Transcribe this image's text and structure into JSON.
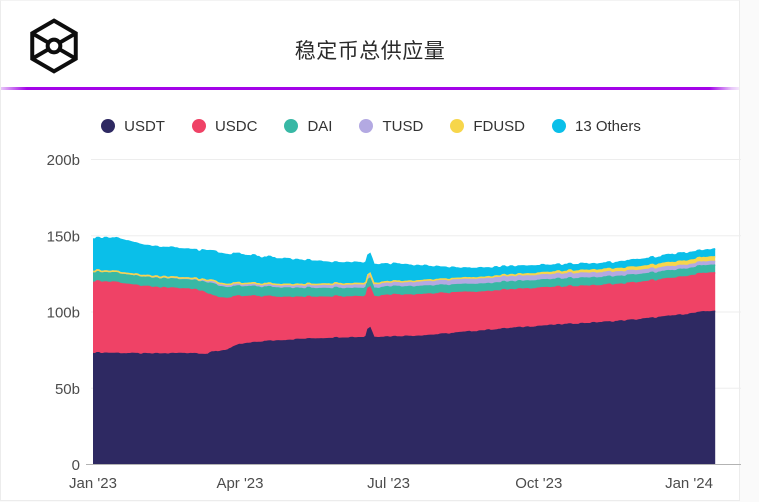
{
  "header": {
    "title": "稳定币总供应量"
  },
  "accent_color": "#a303e8",
  "chart_data": {
    "type": "area",
    "stacked": true,
    "title": "稳定币总供应量",
    "legend_position": "top",
    "grid": true,
    "ylim": [
      0,
      200
    ],
    "y_ticks": [
      {
        "value": 0,
        "label": "0"
      },
      {
        "value": 50,
        "label": "50b"
      },
      {
        "value": 100,
        "label": "100b"
      },
      {
        "value": 150,
        "label": "150b"
      },
      {
        "value": 200,
        "label": "200b"
      }
    ],
    "x_ticks": [
      {
        "day": 0,
        "label": "Jan '23"
      },
      {
        "day": 90,
        "label": "Apr '23"
      },
      {
        "day": 181,
        "label": "Jul '23"
      },
      {
        "day": 273,
        "label": "Oct '23"
      },
      {
        "day": 365,
        "label": "Jan '24"
      }
    ],
    "days": [
      0,
      14,
      31,
      45,
      59,
      66,
      70,
      73,
      77,
      82,
      90,
      105,
      120,
      135,
      151,
      164,
      167,
      169,
      172,
      181,
      196,
      212,
      227,
      243,
      258,
      273,
      288,
      304,
      319,
      334,
      349,
      365,
      374,
      381
    ],
    "series": [
      {
        "name": "USDT",
        "color": "#2e2962",
        "values": [
          73.0,
          72.8,
          72.3,
          72.4,
          72.8,
          72.5,
          72.0,
          73.5,
          74.0,
          75.0,
          78.5,
          80.5,
          81.5,
          82.3,
          83.0,
          83.2,
          83.3,
          91.0,
          83.4,
          83.6,
          84.0,
          85.0,
          86.5,
          88.0,
          89.3,
          90.5,
          91.5,
          92.5,
          93.5,
          94.8,
          96.5,
          98.5,
          99.8,
          100.6
        ]
      },
      {
        "name": "USDC",
        "color": "#ef4266",
        "values": [
          47.0,
          46.5,
          44.2,
          43.0,
          42.2,
          41.5,
          40.0,
          37.0,
          35.5,
          34.0,
          31.5,
          29.5,
          28.0,
          27.4,
          27.0,
          26.8,
          26.8,
          26.8,
          26.8,
          27.5,
          27.2,
          27.0,
          26.0,
          25.5,
          25.2,
          25.0,
          24.7,
          24.5,
          24.4,
          24.5,
          24.7,
          25.0,
          25.3,
          25.5
        ]
      },
      {
        "name": "DAI",
        "color": "#38b8a5",
        "values": [
          6.5,
          6.3,
          6.0,
          6.0,
          6.0,
          6.2,
          7.0,
          8.0,
          7.5,
          7.0,
          6.5,
          6.2,
          6.0,
          5.7,
          5.5,
          5.4,
          5.4,
          5.8,
          5.4,
          5.5,
          5.4,
          5.3,
          5.2,
          5.2,
          5.2,
          5.2,
          5.3,
          5.3,
          5.3,
          5.2,
          5.1,
          5.0,
          5.0,
          5.0
        ]
      },
      {
        "name": "TUSD",
        "color": "#b3a9e2",
        "values": [
          0.8,
          0.9,
          1.2,
          1.3,
          1.3,
          1.5,
          1.8,
          2.2,
          2.2,
          2.2,
          2.2,
          2.3,
          2.5,
          2.8,
          3.1,
          3.2,
          3.2,
          3.3,
          3.3,
          3.3,
          3.5,
          3.6,
          3.6,
          3.5,
          3.4,
          3.3,
          3.3,
          3.2,
          3.0,
          2.8,
          2.7,
          2.5,
          2.5,
          2.5
        ]
      },
      {
        "name": "FDUSD",
        "color": "#f7d64b",
        "values": [
          0,
          0,
          0,
          0,
          0,
          0,
          0,
          0,
          0,
          0,
          0,
          0,
          0,
          0,
          0,
          0,
          0,
          0,
          0.05,
          0.1,
          0.25,
          0.4,
          0.7,
          1.0,
          1.2,
          1.4,
          1.7,
          1.9,
          2.1,
          2.3,
          2.6,
          2.8,
          2.9,
          3.0
        ]
      },
      {
        "name": "13 Others",
        "color": "#0abfe9",
        "values": [
          21.5,
          21.9,
          19.8,
          19.3,
          18.7,
          18.8,
          19.2,
          19.1,
          19.5,
          19.5,
          18.8,
          17.5,
          16.5,
          15.3,
          13.9,
          13.4,
          13.3,
          12.6,
          12.8,
          11.5,
          10.4,
          8.2,
          6.5,
          5.8,
          5.5,
          5.1,
          4.5,
          4.1,
          4.2,
          4.9,
          4.9,
          5.2,
          4.8,
          4.9
        ]
      }
    ]
  }
}
